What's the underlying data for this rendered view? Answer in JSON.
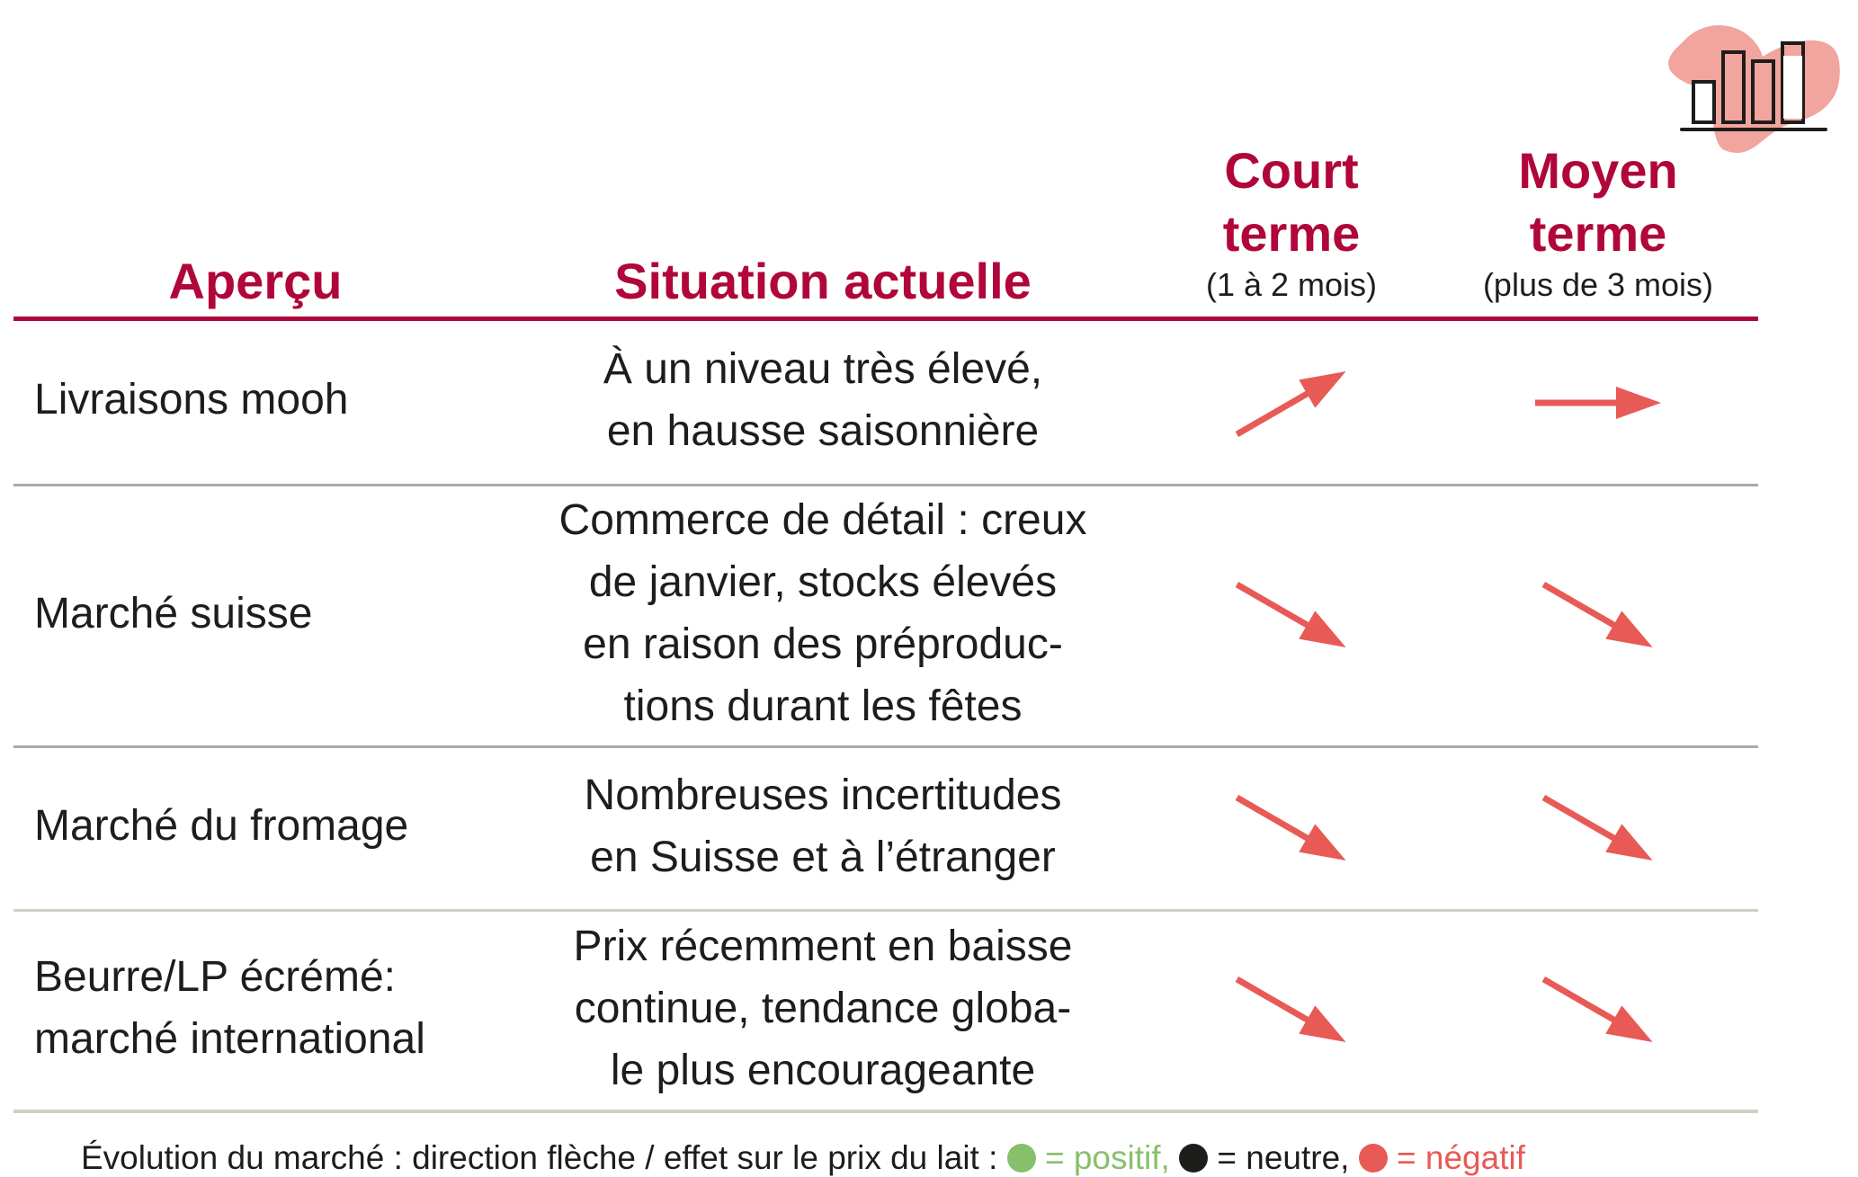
{
  "header": {
    "col1": "Aperçu",
    "col2": "Situation actuelle",
    "col3": {
      "title_line1": "Court",
      "title_line2": "terme",
      "subtitle": "(1 à 2 mois)"
    },
    "col4": {
      "title_line1": "Moyen",
      "title_line2": "terme",
      "subtitle": "(plus de 3 mois)"
    }
  },
  "rows": [
    {
      "label": [
        "Livraisons mooh"
      ],
      "situation": [
        "À un niveau très élevé,",
        "en hausse saisonnière"
      ],
      "short_term": "up-right",
      "medium_term": "right",
      "short_term_effect": "negative",
      "medium_term_effect": "negative"
    },
    {
      "label": [
        "Marché suisse"
      ],
      "situation": [
        "Commerce de détail : creux",
        "de janvier, stocks élevés",
        "en raison des préproduc-",
        "tions durant les fêtes"
      ],
      "short_term": "down-right",
      "medium_term": "down-right",
      "short_term_effect": "negative",
      "medium_term_effect": "negative"
    },
    {
      "label": [
        "Marché du fromage"
      ],
      "situation": [
        "Nombreuses incertitudes",
        "en Suisse et à l’étranger"
      ],
      "short_term": "down-right",
      "medium_term": "down-right",
      "short_term_effect": "negative",
      "medium_term_effect": "negative"
    },
    {
      "label": [
        "Beurre/LP écrémé:",
        "marché international"
      ],
      "situation": [
        "Prix récemment en baisse",
        "continue, tendance globa-",
        "le plus encourageante"
      ],
      "short_term": "down-right",
      "medium_term": "down-right",
      "short_term_effect": "negative",
      "medium_term_effect": "negative"
    }
  ],
  "legend": {
    "prefix": "Évolution du marché : direction flèche / effet sur le prix du lait :",
    "positive": "= positif,",
    "neutral": "= neutre,",
    "negative": "= négatif"
  },
  "colors": {
    "accent": "#b0063a",
    "positive": "#86c06a",
    "neutral": "#1d1d1b",
    "negative": "#e85a55",
    "divider": "#a8a8a8",
    "icon_blob": "#f2a49f"
  },
  "icons": {
    "logo": "bar-chart-icon"
  }
}
